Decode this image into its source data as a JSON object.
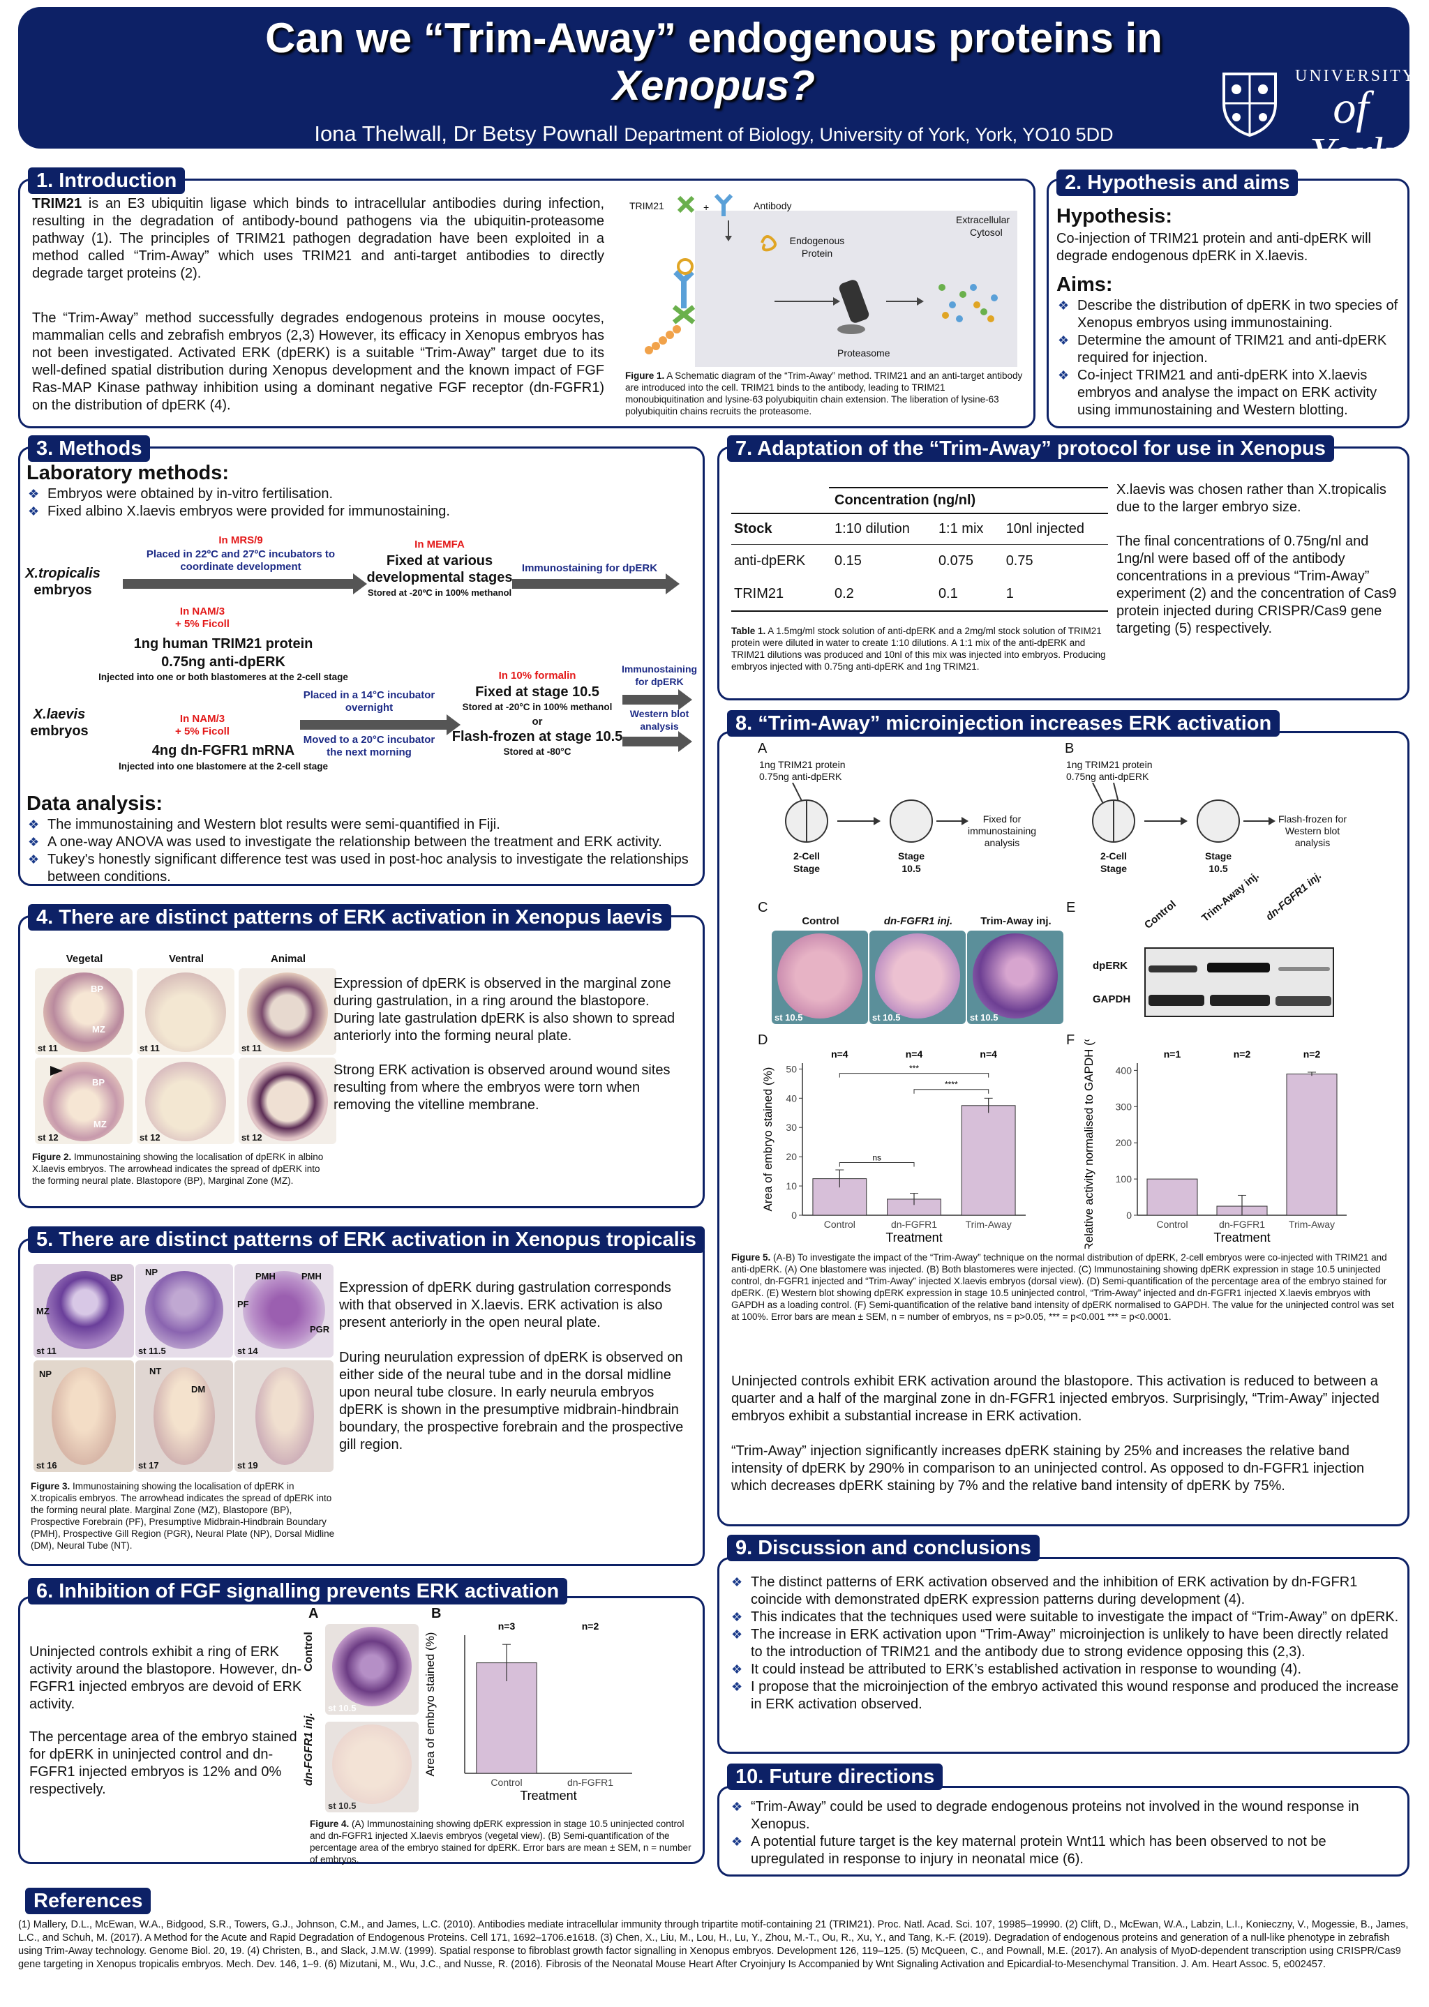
{
  "title": {
    "line1": "Can we “Trim-Away” endogenous proteins in",
    "line2": "Xenopus?",
    "authors": "Iona Thelwall, Dr Betsy Pownall",
    "dept": "Department of Biology, University of York, York, YO10 5DD",
    "uni1": "UNIVERSITY",
    "uni2": "of York"
  },
  "s1": {
    "heading": "1. Introduction",
    "p1": "TRIM21 is an E3 ubiquitin ligase which binds to intracellular antibodies during infection, resulting in the degradation of antibody-bound pathogens via the ubiquitin-proteasome pathway (1). The principles of TRIM21 pathogen degradation have been exploited in a method called “Trim-Away” which uses TRIM21 and anti-target antibodies to directly degrade target proteins (2).",
    "p2": "The “Trim-Away” method successfully degrades endogenous proteins in mouse oocytes, mammalian cells and zebrafish embryos (2,3) However, its efficacy in Xenopus embryos has not been investigated. Activated ERK (dpERK) is a suitable “Trim-Away” target due to its well-defined spatial distribution during Xenopus development and the known impact of FGF Ras-MAP Kinase pathway inhibition using a dominant negative FGF receptor (dn-FGFR1) on the distribution of dpERK (4).",
    "fig": {
      "trim21": "TRIM21",
      "antibody": "Antibody",
      "extra": "Extracellular",
      "cyto": "Cytosol",
      "endo": "Endogenous",
      "protein": "Protein",
      "proteasome": "Proteasome"
    },
    "caption_b": "Figure 1.",
    "caption": "A Schematic diagram of the “Trim-Away” method. TRIM21 and an anti-target antibody are introduced into the cell. TRIM21 binds to the antibody, leading to TRIM21 monoubiquitination and lysine-63 polyubiquitin chain extension. The liberation of lysine-63 polyubiquitin chains recruits the proteasome."
  },
  "s2": {
    "heading": "2. Hypothesis and aims",
    "hyp_h": "Hypothesis:",
    "hyp": "Co-injection of TRIM21 protein and anti-dpERK will degrade endogenous dpERK in X.laevis.",
    "aims_h": "Aims:",
    "aims": [
      "Describe the distribution of dpERK in two species of Xenopus embryos using immunostaining.",
      "Determine the amount of TRIM21 and anti-dpERK required for injection.",
      "Co-inject TRIM21 and anti-dpERK into X.laevis embryos and analyse the impact on ERK activity using immunostaining and Western blotting."
    ]
  },
  "s3": {
    "heading": "3. Methods",
    "lab_h": "Laboratory methods:",
    "lab": [
      "Embryos were obtained by in-vitro fertilisation.",
      "Fixed albino X.laevis embryos were provided for immunostaining."
    ],
    "flow": {
      "xt": "X.tropicalis",
      "emb": "embryos",
      "xl": "X.laevis",
      "mrs": "In MRS/9",
      "placed22": "Placed in 22ºC and 27ºC incubators to coordinate development",
      "memfa": "In MEMFA",
      "fixedvar": "Fixed at various developmental stages",
      "stored20": "Stored at -20ºC in 100% methanol",
      "immuno1": "Immunostaining for dpERK",
      "nam1": "In NAM/3",
      "ficoll1": "+ 5% Ficoll",
      "trim": "1ng human TRIM21 protein",
      "anti": "0.75ng anti-dpERK",
      "inj_both": "Injected into one or both blastomeres at the 2-cell stage",
      "nam2": "In NAM/3",
      "ficoll2": "+ 5% Ficoll",
      "mrna": "4ng dn-FGFR1 mRNA",
      "inj_one": "Injected into one blastomere at the 2-cell stage",
      "placed14": "Placed in a 14°C incubator overnight",
      "moved20": "Moved to a 20°C incubator the next morning",
      "formalin": "In 10% formalin",
      "fixed105": "Fixed at stage 10.5",
      "stored20b": "Stored at -20°C in 100% methanol",
      "or": "or",
      "frozen": "Flash-frozen at stage 10.5",
      "stored80": "Stored at -80°C",
      "immuno2": "Immunostaining for dpERK",
      "western": "Western blot analysis"
    },
    "da_h": "Data analysis:",
    "da": [
      "The immunostaining and Western blot results were semi-quantified in Fiji.",
      "A one-way ANOVA was used to investigate the relationship between the treatment and ERK activity.",
      "Tukey's honestly significant difference test was used in post-hoc analysis to investigate the relationships between conditions."
    ]
  },
  "s4": {
    "heading": "4. There are distinct patterns of ERK activation in Xenopus laevis",
    "cols": [
      "Vegetal",
      "Ventral",
      "Animal"
    ],
    "stage11": "st 11",
    "stage12": "st 12",
    "bp": "BP",
    "mz": "MZ",
    "p1": "Expression of dpERK is observed in the marginal zone during gastrulation, in a ring around the blastopore. During late gastrulation dpERK is also shown to spread anteriorly into the forming neural plate.",
    "p2": "Strong ERK activation is observed around wound sites resulting from where the embryos were torn when removing the vitelline membrane.",
    "caption_b": "Figure 2.",
    "caption": "Immunostaining showing the localisation of dpERK in albino X.laevis embryos. The arrowhead indicates the spread of dpERK into the forming neural plate. Blastopore (BP), Marginal Zone (MZ)."
  },
  "s5": {
    "heading": "5. There are distinct patterns of ERK activation in Xenopus tropicalis",
    "stages": [
      "st 11",
      "st 11.5",
      "st 14",
      "st 16",
      "st 17",
      "st 19"
    ],
    "labels": {
      "bp": "BP",
      "np": "NP",
      "pmh": "PMH",
      "pmh2": "PMH",
      "mz": "MZ",
      "pf": "PF",
      "pgr": "PGR",
      "np2": "NP",
      "nt": "NT",
      "dm": "DM"
    },
    "p1": "Expression of dpERK during gastrulation corresponds with that observed in X.laevis. ERK activation is also present anteriorly in the open neural plate.",
    "p2": "During neurulation expression of dpERK is observed on either side of the neural tube and in the dorsal midline upon neural tube closure. In early neurula embryos dpERK is shown in the presumptive midbrain-hindbrain boundary, the prospective forebrain and the prospective gill region.",
    "caption_b": "Figure 3.",
    "caption": "Immunostaining showing the localisation of dpERK in X.tropicalis embryos. The arrowhead indicates the spread of dpERK into the forming neural plate. Marginal Zone (MZ), Blastopore (BP), Prospective Forebrain (PF), Presumptive Midbrain-Hindbrain Boundary (PMH), Prospective Gill Region (PGR), Neural Plate (NP), Dorsal Midline (DM), Neural Tube (NT)."
  },
  "s6": {
    "heading": "6. Inhibition of FGF signalling prevents ERK activation",
    "A": "A",
    "B": "B",
    "control": "Control",
    "dnf": "dn-FGFR1 inj.",
    "st": "st 10.5",
    "p1": "Uninjected controls exhibit a ring of ERK activity around the blastopore. However, dn-FGFR1 injected embryos are devoid of ERK activity.",
    "p2": "The percentage area of the embryo stained for dpERK in uninjected control and dn-FGFR1 injected embryos is 12% and 0% respectively.",
    "caption_b": "Figure 4.",
    "caption": "(A) Immunostaining showing dpERK expression in stage 10.5 uninjected control and dn-FGFR1 injected X.laevis embryos (vegetal view). (B) Semi-quantification of the percentage area of the embryo stained for dpERK. Error bars are mean ± SEM, n = number of embryos."
  },
  "s7": {
    "heading": "7. Adaptation of the “Trim-Away” protocol for use in Xenopus",
    "th_conc": "Concentration (ng/nl)",
    "th_stock": "Stock",
    "th_c1": "1:10 dilution",
    "th_c2": "1:1 mix",
    "th_c3": "10nl injected",
    "rows": [
      {
        "name": "anti-dpERK",
        "v": [
          "0.15",
          "0.075",
          "0.75"
        ]
      },
      {
        "name": "TRIM21",
        "v": [
          "0.2",
          "0.1",
          "1"
        ]
      }
    ],
    "caption_b": "Table 1.",
    "caption": "A 1.5mg/ml stock solution of anti-dpERK and a 2mg/ml stock solution of TRIM21 protein were diluted in water to create 1:10 dilutions. A 1:1 mix of the anti-dpERK and TRIM21 dilutions was produced and 10nl of this mix was injected into embryos. Producing embryos injected with 0.75ng anti-dpERK and 1ng TRIM21.",
    "p1": "X.laevis was chosen rather than X.tropicalis due to the larger embryo size.",
    "p2": "The final concentrations of 0.75ng/nl and 1ng/nl were based off of the antibody concentrations in a previous “Trim-Away” experiment (2) and the concentration of Cas9 protein injected during CRISPR/Cas9 gene targeting (5) respectively."
  },
  "s8": {
    "heading": "8. “Trim-Away” microinjection increases ERK activation",
    "A": "A",
    "B": "B",
    "C": "C",
    "D": "D",
    "E": "E",
    "F": "F",
    "inj1": "1ng TRIM21 protein",
    "inj2": "0.75ng anti-dpERK",
    "fixed": "Fixed for immunostaining analysis",
    "frozen": "Flash-frozen for Western blot analysis",
    "twocell": "2-Cell",
    "stage": "Stage",
    "st105": "Stage",
    "st105b": "10.5",
    "cols": [
      "Control",
      "dn-FGFR1 inj.",
      "Trim-Away inj."
    ],
    "st": "st 10.5",
    "wb_cols": [
      "Control",
      "Trim-Away inj.",
      "dn-FGFR1 inj."
    ],
    "dperk": "dpERK",
    "gapdh": "GAPDH",
    "caption_b": "Figure 5.",
    "caption": "(A-B) To investigate the impact of the “Trim-Away” technique on the normal distribution of dpERK, 2-cell embryos were co-injected with TRIM21 and anti-dpERK. (A) One blastomere was injected. (B) Both blastomeres were injected. (C) Immunostaining showing dpERK expression in stage 10.5 uninjected control, dn-FGFR1 injected and “Trim-Away” injected X.laevis embryos (dorsal view). (D) Semi-quantification of the percentage area of the embryo stained for dpERK. (E) Western blot showing dpERK expression in stage 10.5 uninjected control, “Trim-Away” injected and dn-FGFR1 injected X.laevis embryos with GAPDH as a loading control. (F) Semi-quantification of the relative band intensity of dpERK normalised to GAPDH. The value for the uninjected control was set at 100%. Error bars are mean ± SEM, n = number of embryos, ns = p>0.05, *** = p<0.001 *** = p<0.0001.",
    "p1": "Uninjected controls exhibit ERK activation around the blastopore. This activation is reduced to between a quarter and a half of the marginal zone in dn-FGFR1 injected embryos. Surprisingly, “Trim-Away” injected embryos exhibit a substantial increase in ERK activation.",
    "p2": "“Trim-Away” injection significantly increases dpERK staining by 25% and increases the relative band intensity of dpERK by 290% in comparison to an uninjected control. As opposed to dn-FGFR1 injection which decreases dpERK staining by 7% and the relative band intensity of dpERK by 75%."
  },
  "s9": {
    "heading": "9. Discussion and conclusions",
    "items": [
      "The distinct patterns of ERK activation observed and the inhibition of ERK activation by dn-FGFR1 coincide with demonstrated dpERK expression patterns during development (4).",
      "This indicates that the techniques used were suitable to investigate the impact of “Trim-Away” on dpERK.",
      "The increase in ERK activation upon “Trim-Away” microinjection is unlikely to have been directly related to the introduction of TRIM21 and the antibody due to strong evidence opposing this (2,3).",
      "It could instead be attributed to ERK’s established activation in response to wounding (4).",
      "I propose that the microinjection of the embryo activated this wound response and produced the increase in ERK activation observed."
    ]
  },
  "s10": {
    "heading": "10. Future directions",
    "items": [
      "“Trim-Away” could be used to degrade endogenous proteins not involved in the wound response in Xenopus.",
      "A potential future target is the key maternal protein Wnt11 which has been observed to not be upregulated in response to injury in neonatal mice (6)."
    ]
  },
  "refs": {
    "heading": "References",
    "text": "(1) Mallery, D.L., McEwan, W.A., Bidgood, S.R., Towers, G.J., Johnson, C.M., and James, L.C. (2010). Antibodies mediate intracellular immunity through tripartite motif-containing 21 (TRIM21). Proc. Natl. Acad. Sci. 107, 19985–19990. (2) Clift, D., McEwan, W.A., Labzin, L.I., Konieczny, V., Mogessie, B., James, L.C., and Schuh, M. (2017). A Method for the Acute and Rapid Degradation of Endogenous Proteins. Cell 171, 1692–1706.e1618. (3) Chen, X., Liu, M., Lou, H., Lu, Y., Zhou, M.-T., Ou, R., Xu, Y., and Tang, K.-F. (2019). Degradation of endogenous proteins and generation of a null-like phenotype in zebrafish using Trim-Away technology. Genome Biol. 20, 19. (4) Christen, B., and Slack, J.M.W. (1999). Spatial response to fibroblast growth factor signalling in Xenopus embryos. Development 126, 119–125. (5) McQueen, C., and Pownall, M.E. (2017). An analysis of MyoD-dependent transcription using CRISPR/Cas9 gene targeting in Xenopus tropicalis embryos. Mech. Dev. 146, 1–9. (6) Mizutani, M., Wu, J.C., and Nusse, R. (2016). Fibrosis of the Neonatal Mouse Heart After Cryoinjury Is Accompanied by Wnt Signaling Activation and Epicardial-to-Mesenchymal Transition. J. Am. Heart Assoc. 5, e002457."
  },
  "chart_data": [
    {
      "type": "bar",
      "id": "fig4B",
      "categories": [
        "Control",
        "dn-FGFR1"
      ],
      "values": [
        12,
        0
      ],
      "errors": [
        2,
        0
      ],
      "n": [
        "n=3",
        "n=2"
      ],
      "xlabel": "Treatment",
      "ylabel": "Area of embryo stained (%)",
      "ylim": [
        0,
        15
      ],
      "color": "#d7bfd9"
    },
    {
      "type": "bar",
      "id": "fig5D",
      "categories": [
        "Control",
        "dn-FGFR1",
        "Trim-Away"
      ],
      "values": [
        12.5,
        5.5,
        37.5
      ],
      "errors": [
        3,
        2,
        2.5
      ],
      "n": [
        "n=4",
        "n=4",
        "n=4"
      ],
      "ticks": [
        0,
        10,
        20,
        30,
        40,
        50
      ],
      "sig": [
        "ns",
        "****",
        "***"
      ],
      "xlabel": "Treatment",
      "ylabel": "Area of embryo stained (%)",
      "ylim": [
        0,
        52
      ],
      "color": "#d7bfd9"
    },
    {
      "type": "bar",
      "id": "fig5F",
      "categories": [
        "Control",
        "dn-FGFR1",
        "Trim-Away"
      ],
      "values": [
        100,
        25,
        390
      ],
      "errors": [
        0,
        30,
        5
      ],
      "n": [
        "n=1",
        "n=2",
        "n=2"
      ],
      "ticks": [
        0,
        100,
        200,
        300,
        400
      ],
      "xlabel": "Treatment",
      "ylabel": "Relative activity normalised to GAPDH (%)",
      "ylim": [
        0,
        420
      ],
      "color": "#d7bfd9"
    }
  ]
}
